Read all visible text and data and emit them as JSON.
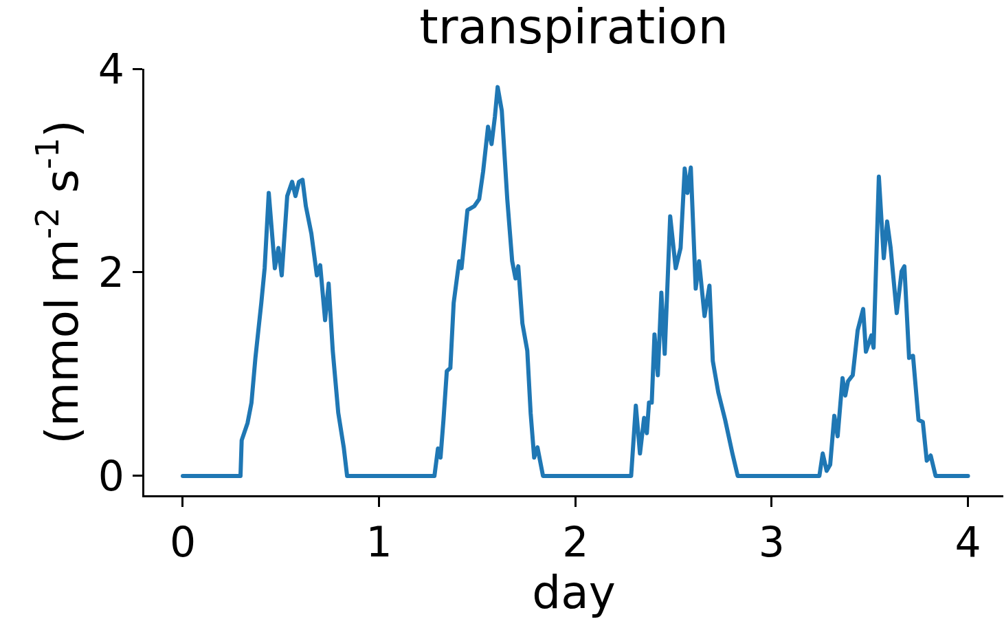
{
  "chart_data": {
    "type": "line",
    "title": "transpiration",
    "xlabel": "day",
    "ylabel": "(mmol m$^{-2}$ s$^{-1}$)",
    "xlim": [
      -0.196,
      4.18
    ],
    "ylim": [
      -0.19,
      4
    ],
    "xticks": [
      0,
      1,
      2,
      3,
      4
    ],
    "yticks": [
      0,
      2,
      4
    ],
    "grid": false,
    "marker": "none",
    "line_style": "solid",
    "series": [
      {
        "color": "#1f77b4",
        "x": [
          0,
          0.294,
          0.3,
          0.33,
          0.35,
          0.37,
          0.385,
          0.4,
          0.417,
          0.438,
          0.469,
          0.487,
          0.504,
          0.532,
          0.557,
          0.574,
          0.592,
          0.61,
          0.627,
          0.655,
          0.683,
          0.7,
          0.725,
          0.743,
          0.764,
          0.792,
          0.82,
          0.837,
          1.282,
          1.3,
          1.313,
          1.328,
          1.345,
          1.363,
          1.38,
          1.408,
          1.42,
          1.45,
          1.485,
          1.51,
          1.53,
          1.555,
          1.573,
          1.59,
          1.604,
          1.625,
          1.653,
          1.678,
          1.695,
          1.709,
          1.73,
          1.755,
          1.772,
          1.79,
          1.807,
          1.835,
          2.284,
          2.308,
          2.329,
          2.35,
          2.364,
          2.375,
          2.389,
          2.403,
          2.42,
          2.438,
          2.455,
          2.483,
          2.511,
          2.536,
          2.557,
          2.571,
          2.588,
          2.613,
          2.63,
          2.658,
          2.683,
          2.7,
          2.728,
          2.763,
          2.8,
          2.827,
          3.243,
          3.26,
          3.28,
          3.298,
          3.319,
          3.336,
          3.361,
          3.375,
          3.389,
          3.413,
          3.438,
          3.466,
          3.48,
          3.508,
          3.519,
          3.546,
          3.571,
          3.588,
          3.606,
          3.637,
          3.662,
          3.676,
          3.7,
          3.72,
          3.748,
          3.77,
          3.79,
          3.81,
          3.835,
          4.0
        ],
        "values": [
          0,
          0,
          0.35,
          0.52,
          0.72,
          1.16,
          1.43,
          1.7,
          2.04,
          2.78,
          2.04,
          2.24,
          1.97,
          2.75,
          2.89,
          2.75,
          2.89,
          2.91,
          2.65,
          2.38,
          1.97,
          2.07,
          1.53,
          1.89,
          1.23,
          0.62,
          0.28,
          0,
          0,
          0.27,
          0.18,
          0.55,
          1.03,
          1.06,
          1.7,
          2.11,
          2.04,
          2.61,
          2.65,
          2.72,
          2.99,
          3.43,
          3.26,
          3.53,
          3.82,
          3.59,
          2.72,
          2.11,
          1.94,
          2.06,
          1.5,
          1.23,
          0.62,
          0.18,
          0.28,
          0,
          0,
          0.69,
          0.22,
          0.57,
          0.42,
          0.72,
          0.72,
          1.39,
          0.99,
          1.8,
          1.2,
          2.55,
          2.04,
          2.24,
          3.02,
          2.78,
          3.03,
          1.84,
          2.11,
          1.57,
          1.87,
          1.13,
          0.82,
          0.55,
          0.22,
          0,
          0,
          0.22,
          0.05,
          0.11,
          0.59,
          0.39,
          0.96,
          0.79,
          0.93,
          0.99,
          1.43,
          1.64,
          1.22,
          1.38,
          1.26,
          2.94,
          2.14,
          2.5,
          2.24,
          1.6,
          2.01,
          2.06,
          1.16,
          1.18,
          0.55,
          0.53,
          0.15,
          0.2,
          0,
          0
        ]
      }
    ]
  }
}
